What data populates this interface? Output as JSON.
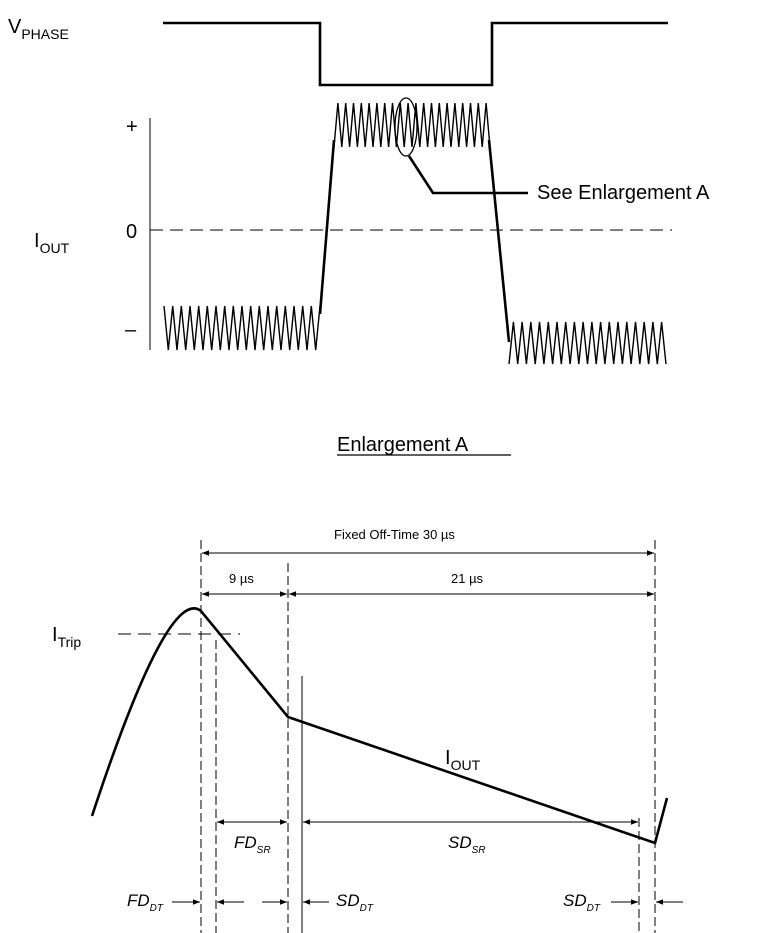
{
  "top_waveform": {
    "vphase_main": "V",
    "vphase_sub": "PHASE",
    "iout_main": "I",
    "iout_sub": "OUT",
    "tick_plus": "+",
    "tick_zero": "0",
    "tick_minus": "–",
    "callout": "See Enlargement A"
  },
  "enlargement": {
    "title": "Enlargement A",
    "fixed_off_time": "Fixed Off-Time 30 µs",
    "fast_decay_time": "9 µs",
    "slow_decay_time": "21 µs",
    "itrip_main": "I",
    "itrip_sub": "Trip",
    "iout_main": "I",
    "iout_sub": "OUT",
    "fd_sr_main": "FD",
    "fd_sr_sub": "SR",
    "sd_sr_main": "SD",
    "sd_sr_sub": "SR",
    "fd_dt_main": "FD",
    "fd_dt_sub": "DT",
    "sd_dt_left_main": "SD",
    "sd_dt_left_sub": "DT",
    "sd_dt_right_main": "SD",
    "sd_dt_right_sub": "DT"
  }
}
